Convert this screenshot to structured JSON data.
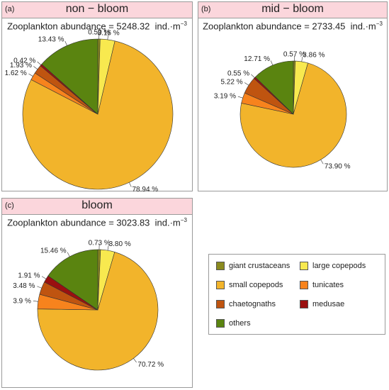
{
  "chart_data": [
    {
      "type": "pie",
      "panel_label": "(a)",
      "title": "non − bloom",
      "subtitle_prefix": "Zooplankton abundance = 5248.32",
      "subtitle_unit": "ind.·m",
      "subtitle_exp": "−3",
      "slices": [
        {
          "category": "giant crustaceans",
          "value": 0.5,
          "label": "0.50 %"
        },
        {
          "category": "large copepods",
          "value": 3.16,
          "label": "3.16 %"
        },
        {
          "category": "small copepods",
          "value": 78.94,
          "label": "78.94 %"
        },
        {
          "category": "tunicates",
          "value": 1.62,
          "label": "1.62 %"
        },
        {
          "category": "chaetognaths",
          "value": 1.93,
          "label": "1.93 %"
        },
        {
          "category": "medusae",
          "value": 0.42,
          "label": "0.42 %"
        },
        {
          "category": "others",
          "value": 13.43,
          "label": "13.43 %"
        }
      ]
    },
    {
      "type": "pie",
      "panel_label": "(b)",
      "title": "mid − bloom",
      "subtitle_prefix": "Zooplankton abundance = 2733.45",
      "subtitle_unit": "ind.·m",
      "subtitle_exp": "−3",
      "slices": [
        {
          "category": "giant crustaceans",
          "value": 0.57,
          "label": "0.57 %"
        },
        {
          "category": "large copepods",
          "value": 3.86,
          "label": "3.86 %"
        },
        {
          "category": "small copepods",
          "value": 73.9,
          "label": "73.90 %"
        },
        {
          "category": "tunicates",
          "value": 3.19,
          "label": "3.19 %"
        },
        {
          "category": "chaetognaths",
          "value": 5.22,
          "label": "5.22 %"
        },
        {
          "category": "medusae",
          "value": 0.55,
          "label": "0.55 %"
        },
        {
          "category": "others",
          "value": 12.71,
          "label": "12.71 %"
        }
      ]
    },
    {
      "type": "pie",
      "panel_label": "(c)",
      "title": "bloom",
      "subtitle_prefix": "Zooplankton abundance = 3023.83",
      "subtitle_unit": "ind.·m",
      "subtitle_exp": "−3",
      "slices": [
        {
          "category": "giant crustaceans",
          "value": 0.73,
          "label": "0.73 %"
        },
        {
          "category": "large copepods",
          "value": 3.8,
          "label": "3.80 %"
        },
        {
          "category": "small copepods",
          "value": 70.72,
          "label": "70.72 %"
        },
        {
          "category": "tunicates",
          "value": 3.9,
          "label": "3.9 %"
        },
        {
          "category": "chaetognaths",
          "value": 3.48,
          "label": "3.48 %"
        },
        {
          "category": "medusae",
          "value": 1.91,
          "label": "1.91 %"
        },
        {
          "category": "others",
          "value": 15.46,
          "label": "15.46 %"
        }
      ]
    }
  ],
  "legend": [
    {
      "name": "giant crustaceans",
      "color": "#8a8a1e"
    },
    {
      "name": "large copepods",
      "color": "#f8e94f"
    },
    {
      "name": "small copepods",
      "color": "#f2b42b"
    },
    {
      "name": "tunicates",
      "color": "#f7831d"
    },
    {
      "name": "chaetognaths",
      "color": "#bf5410"
    },
    {
      "name": "medusae",
      "color": "#9a1010"
    },
    {
      "name": "others",
      "color": "#5a8410"
    }
  ]
}
